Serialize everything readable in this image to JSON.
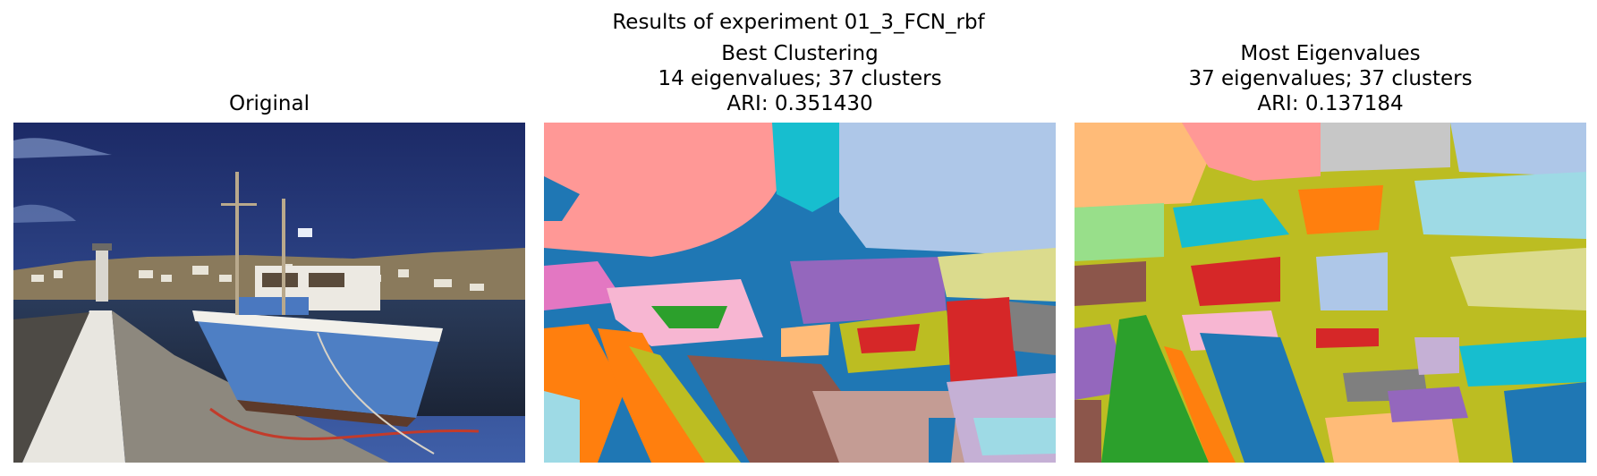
{
  "figure": {
    "suptitle": "Results of experiment 01_3_FCN_rbf"
  },
  "panels": [
    {
      "title_lines": [
        "Original"
      ],
      "image": "photo of a blue and white fishing boat moored at a harbor pier with a white hillside town and blue sky"
    },
    {
      "title_lines": [
        "Best Clustering",
        "14 eigenvalues; 37 clusters",
        "ARI: 0.351430"
      ],
      "image": "segmentation map in categorical colors"
    },
    {
      "title_lines": [
        "Most Eigenvalues",
        "37 eigenvalues; 37 clusters",
        "ARI: 0.137184"
      ],
      "image": "segmentation map in categorical colors"
    }
  ],
  "palette": [
    "#1f77b4",
    "#aec7e8",
    "#ff7f0e",
    "#ffbb78",
    "#2ca02c",
    "#98df8a",
    "#d62728",
    "#ff9896",
    "#9467bd",
    "#c5b0d5",
    "#8c564b",
    "#c49c94",
    "#e377c2",
    "#f7b6d2",
    "#7f7f7f",
    "#c7c7c7",
    "#bcbd22",
    "#dbdb8d",
    "#17becf",
    "#9edae5"
  ]
}
